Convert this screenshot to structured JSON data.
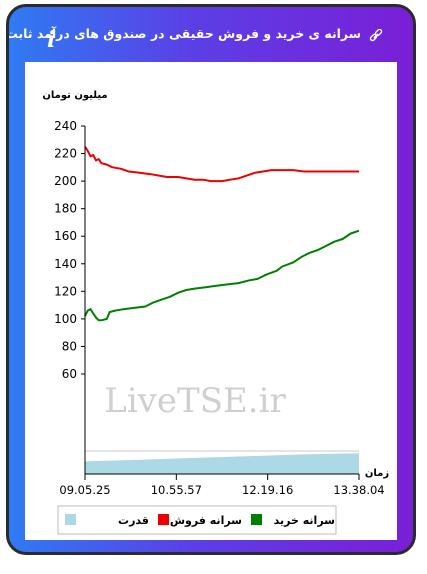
{
  "header": {
    "title": "سرانه ی خرید و فروش حقیقی در صندوق های درآمد ثابت",
    "info_icon": "i"
  },
  "watermark": "LiveTSE.ir",
  "legend": [
    {
      "label": "سرانه خرید",
      "color": "#008000"
    },
    {
      "label": "سرانه فروش",
      "color": "#ee0000"
    },
    {
      "label": "قدرت",
      "color": "#add8e6"
    }
  ],
  "chart_data": {
    "type": "line",
    "ylabel": "میلیون تومان",
    "xlabel": "زمان",
    "y_ticks": [
      60,
      80,
      100,
      120,
      140,
      160,
      180,
      200,
      220,
      240
    ],
    "x_ticks": [
      "09.05.25",
      "10.55.57",
      "12.19.16",
      "13.38.04"
    ],
    "series": [
      {
        "name": "سرانه فروش",
        "color": "#ee0000",
        "points": [
          [
            0,
            225
          ],
          [
            0.01,
            222
          ],
          [
            0.02,
            218
          ],
          [
            0.03,
            219
          ],
          [
            0.04,
            215
          ],
          [
            0.05,
            216
          ],
          [
            0.06,
            213
          ],
          [
            0.08,
            212
          ],
          [
            0.1,
            210
          ],
          [
            0.13,
            209
          ],
          [
            0.16,
            207
          ],
          [
            0.2,
            206
          ],
          [
            0.24,
            205
          ],
          [
            0.27,
            204
          ],
          [
            0.3,
            203
          ],
          [
            0.34,
            203
          ],
          [
            0.37,
            202
          ],
          [
            0.4,
            201
          ],
          [
            0.43,
            201
          ],
          [
            0.46,
            200
          ],
          [
            0.5,
            200
          ],
          [
            0.53,
            201
          ],
          [
            0.56,
            202
          ],
          [
            0.59,
            204
          ],
          [
            0.62,
            206
          ],
          [
            0.65,
            207
          ],
          [
            0.68,
            208
          ],
          [
            0.72,
            208
          ],
          [
            0.76,
            208
          ],
          [
            0.8,
            207
          ],
          [
            0.85,
            207
          ],
          [
            0.9,
            207
          ],
          [
            0.95,
            207
          ],
          [
            1.0,
            207
          ]
        ]
      },
      {
        "name": "سرانه خرید",
        "color": "#008000",
        "points": [
          [
            0,
            102
          ],
          [
            0.01,
            106
          ],
          [
            0.02,
            107
          ],
          [
            0.03,
            104
          ],
          [
            0.04,
            101
          ],
          [
            0.05,
            99
          ],
          [
            0.06,
            99
          ],
          [
            0.08,
            100
          ],
          [
            0.09,
            105
          ],
          [
            0.11,
            106
          ],
          [
            0.14,
            107
          ],
          [
            0.18,
            108
          ],
          [
            0.22,
            109
          ],
          [
            0.25,
            112
          ],
          [
            0.28,
            114
          ],
          [
            0.31,
            116
          ],
          [
            0.34,
            119
          ],
          [
            0.37,
            121
          ],
          [
            0.4,
            122
          ],
          [
            0.44,
            123
          ],
          [
            0.48,
            124
          ],
          [
            0.52,
            125
          ],
          [
            0.56,
            126
          ],
          [
            0.6,
            128
          ],
          [
            0.63,
            129
          ],
          [
            0.66,
            132
          ],
          [
            0.7,
            135
          ],
          [
            0.72,
            138
          ],
          [
            0.76,
            141
          ],
          [
            0.79,
            145
          ],
          [
            0.82,
            148
          ],
          [
            0.85,
            150
          ],
          [
            0.88,
            153
          ],
          [
            0.91,
            156
          ],
          [
            0.94,
            158
          ],
          [
            0.97,
            162
          ],
          [
            1.0,
            164
          ]
        ]
      }
    ],
    "power": {
      "name": "قدرت",
      "color": "#add8e6",
      "values": [
        0.55,
        0.62,
        0.7,
        0.78,
        0.85,
        0.9
      ]
    }
  }
}
